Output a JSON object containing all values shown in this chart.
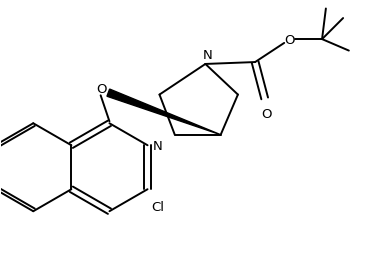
{
  "bg": "#ffffff",
  "lw": 1.4,
  "fs": 9.5,
  "figsize": [
    3.84,
    2.55
  ],
  "dpi": 100,
  "xlim": [
    0,
    10
  ],
  "ylim": [
    0,
    6.63
  ]
}
